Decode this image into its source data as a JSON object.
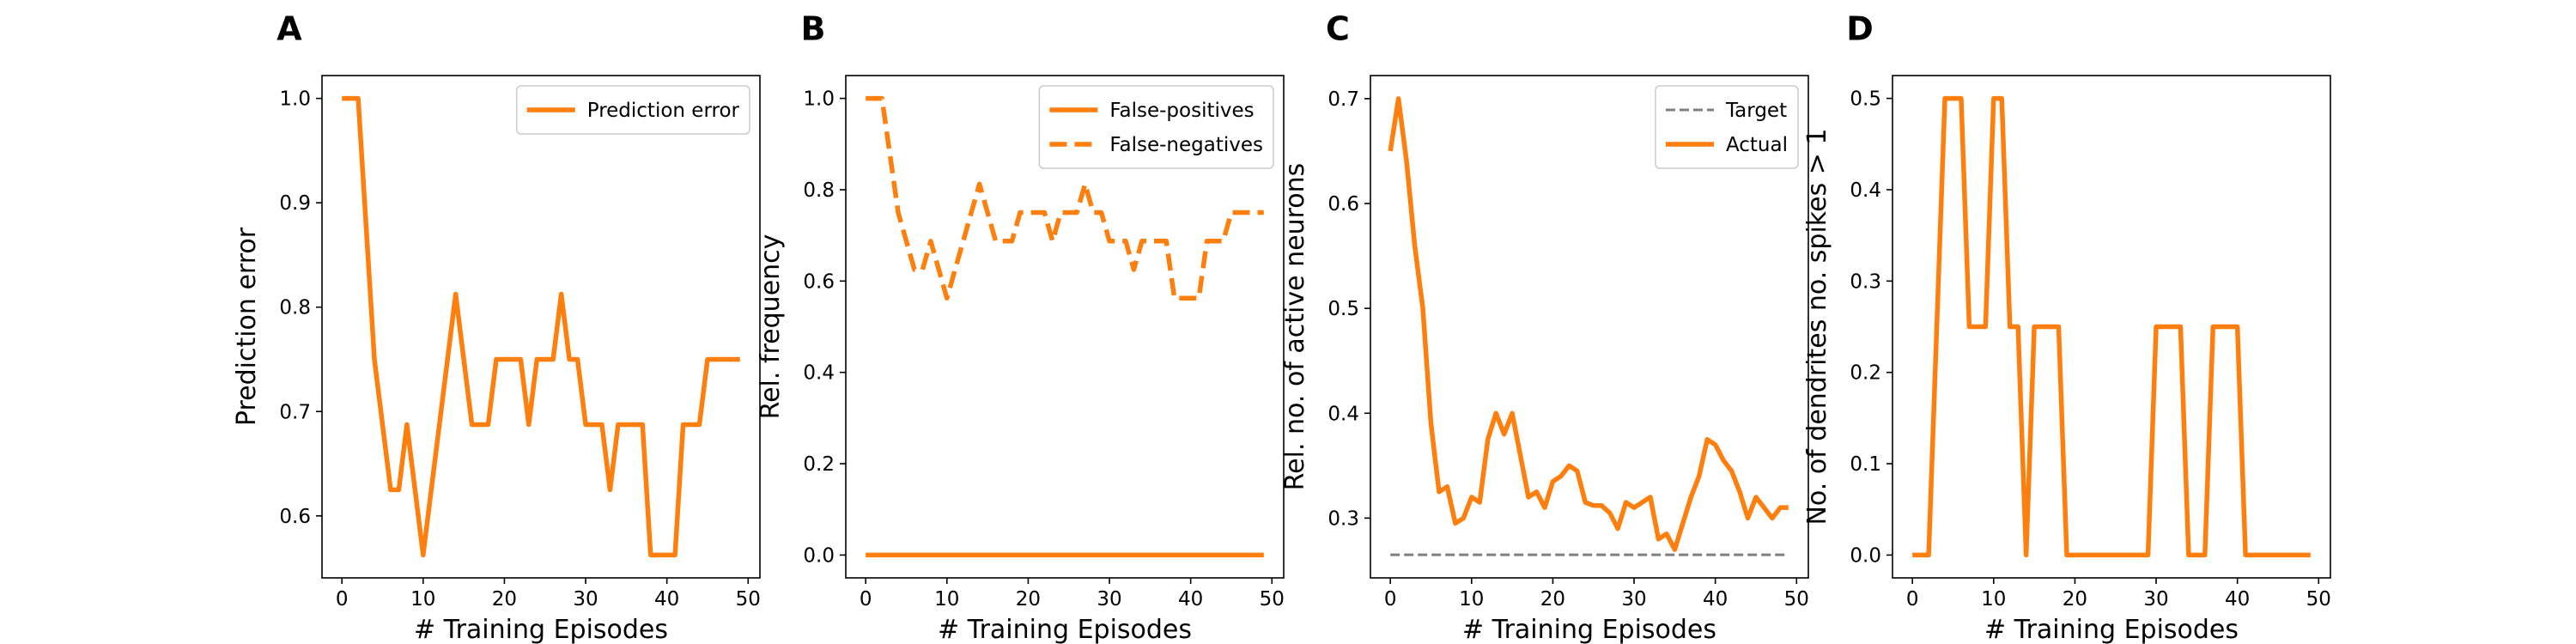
{
  "chart_data": [
    {
      "type": "line",
      "title": "A",
      "xlabel": "# Training Episodes",
      "ylabel": "Prediction error",
      "x": [
        0,
        1,
        2,
        3,
        4,
        5,
        6,
        7,
        8,
        9,
        10,
        11,
        12,
        13,
        14,
        15,
        16,
        17,
        18,
        19,
        20,
        21,
        22,
        23,
        24,
        25,
        26,
        27,
        28,
        29,
        30,
        31,
        32,
        33,
        34,
        35,
        36,
        37,
        38,
        39,
        40,
        41,
        42,
        43,
        44,
        45,
        46,
        47,
        48,
        49
      ],
      "series": [
        {
          "name": "Prediction error",
          "color": "#ff7f0e",
          "linestyle": "solid",
          "values": [
            1,
            1,
            1,
            0.875,
            0.75,
            0.6875,
            0.625,
            0.625,
            0.6875,
            0.625,
            0.5625,
            0.625,
            0.6875,
            0.75,
            0.8125,
            0.75,
            0.6875,
            0.6875,
            0.6875,
            0.75,
            0.75,
            0.75,
            0.75,
            0.6875,
            0.75,
            0.75,
            0.75,
            0.8125,
            0.75,
            0.75,
            0.6875,
            0.6875,
            0.6875,
            0.625,
            0.6875,
            0.6875,
            0.6875,
            0.6875,
            0.5625,
            0.5625,
            0.5625,
            0.5625,
            0.6875,
            0.6875,
            0.6875,
            0.75,
            0.75,
            0.75,
            0.75,
            0.75
          ]
        }
      ],
      "xlim": [
        -2.45,
        51.45
      ],
      "xticks": [
        0,
        10,
        20,
        30,
        40,
        50
      ],
      "ylim": [
        0.5406,
        1.0219
      ],
      "yticks": [
        0.6,
        0.7,
        0.8,
        0.9,
        {
          "value": 1,
          "label": "1.0"
        }
      ],
      "legend": "upper right"
    },
    {
      "type": "line",
      "title": "B",
      "xlabel": "# Training Episodes",
      "ylabel": "Rel. frequency",
      "x": [
        0,
        1,
        2,
        3,
        4,
        5,
        6,
        7,
        8,
        9,
        10,
        11,
        12,
        13,
        14,
        15,
        16,
        17,
        18,
        19,
        20,
        21,
        22,
        23,
        24,
        25,
        26,
        27,
        28,
        29,
        30,
        31,
        32,
        33,
        34,
        35,
        36,
        37,
        38,
        39,
        40,
        41,
        42,
        43,
        44,
        45,
        46,
        47,
        48,
        49
      ],
      "series": [
        {
          "name": "False-positives",
          "color": "#ff7f0e",
          "linestyle": "solid",
          "values": [
            0,
            0,
            0,
            0,
            0,
            0,
            0,
            0,
            0,
            0,
            0,
            0,
            0,
            0,
            0,
            0,
            0,
            0,
            0,
            0,
            0,
            0,
            0,
            0,
            0,
            0,
            0,
            0,
            0,
            0,
            0,
            0,
            0,
            0,
            0,
            0,
            0,
            0,
            0,
            0,
            0,
            0,
            0,
            0,
            0,
            0,
            0,
            0,
            0,
            0
          ]
        },
        {
          "name": "False-negatives",
          "color": "#ff7f0e",
          "linestyle": "dashed",
          "values": [
            1,
            1,
            1,
            0.875,
            0.75,
            0.6875,
            0.625,
            0.625,
            0.6875,
            0.625,
            0.5625,
            0.625,
            0.6875,
            0.75,
            0.8125,
            0.75,
            0.6875,
            0.6875,
            0.6875,
            0.75,
            0.75,
            0.75,
            0.75,
            0.6875,
            0.75,
            0.75,
            0.75,
            0.8125,
            0.75,
            0.75,
            0.6875,
            0.6875,
            0.6875,
            0.625,
            0.6875,
            0.6875,
            0.6875,
            0.6875,
            0.5625,
            0.5625,
            0.5625,
            0.5625,
            0.6875,
            0.6875,
            0.6875,
            0.75,
            0.75,
            0.75,
            0.75,
            0.75
          ]
        }
      ],
      "xlim": [
        -2.45,
        51.45
      ],
      "xticks": [
        0,
        10,
        20,
        30,
        40,
        50
      ],
      "ylim": [
        -0.05,
        1.05
      ],
      "yticks": [
        {
          "value": 0,
          "label": "0.0"
        },
        0.2,
        0.4,
        0.6,
        0.8,
        {
          "value": 1,
          "label": "1.0"
        }
      ],
      "legend": "upper right"
    },
    {
      "type": "line",
      "title": "C",
      "xlabel": "# Training Episodes",
      "ylabel": "Rel. no. of active neurons",
      "x": [
        0,
        1,
        2,
        3,
        4,
        5,
        6,
        7,
        8,
        9,
        10,
        11,
        12,
        13,
        14,
        15,
        16,
        17,
        18,
        19,
        20,
        21,
        22,
        23,
        24,
        25,
        26,
        27,
        28,
        29,
        30,
        31,
        32,
        33,
        34,
        35,
        36,
        37,
        38,
        39,
        40,
        41,
        42,
        43,
        44,
        45,
        46,
        47,
        48,
        49
      ],
      "series": [
        {
          "name": "Target",
          "color": "#7f7f7f",
          "linestyle": "dashed",
          "values": [
            0.265,
            0.265,
            0.265,
            0.265,
            0.265,
            0.265,
            0.265,
            0.265,
            0.265,
            0.265,
            0.265,
            0.265,
            0.265,
            0.265,
            0.265,
            0.265,
            0.265,
            0.265,
            0.265,
            0.265,
            0.265,
            0.265,
            0.265,
            0.265,
            0.265,
            0.265,
            0.265,
            0.265,
            0.265,
            0.265,
            0.265,
            0.265,
            0.265,
            0.265,
            0.265,
            0.265,
            0.265,
            0.265,
            0.265,
            0.265,
            0.265,
            0.265,
            0.265,
            0.265,
            0.265,
            0.265,
            0.265,
            0.265,
            0.265,
            0.265
          ]
        },
        {
          "name": "Actual",
          "color": "#ff7f0e",
          "linestyle": "solid",
          "values": [
            0.65,
            0.7,
            0.64,
            0.56,
            0.5,
            0.39,
            0.325,
            0.33,
            0.295,
            0.3,
            0.32,
            0.315,
            0.375,
            0.4,
            0.38,
            0.4,
            0.36,
            0.32,
            0.325,
            0.31,
            0.335,
            0.34,
            0.35,
            0.345,
            0.315,
            0.312,
            0.312,
            0.305,
            0.29,
            0.315,
            0.31,
            0.315,
            0.32,
            0.28,
            0.285,
            0.27,
            0.295,
            0.32,
            0.34,
            0.375,
            0.37,
            0.355,
            0.345,
            0.325,
            0.3,
            0.32,
            0.31,
            0.3,
            0.31,
            0.31
          ]
        }
      ],
      "xlim": [
        -2.45,
        51.45
      ],
      "xticks": [
        0,
        10,
        20,
        30,
        40,
        50
      ],
      "ylim": [
        0.243,
        0.722
      ],
      "yticks": [
        0.3,
        0.4,
        0.5,
        0.6,
        0.7
      ],
      "legend": "upper right"
    },
    {
      "type": "line",
      "title": "D",
      "xlabel": "# Training Episodes",
      "ylabel": "No. of dendrites no. spikes > 1",
      "x": [
        0,
        1,
        2,
        3,
        4,
        5,
        6,
        7,
        8,
        9,
        10,
        11,
        12,
        13,
        14,
        15,
        16,
        17,
        18,
        19,
        20,
        21,
        22,
        23,
        24,
        25,
        26,
        27,
        28,
        29,
        30,
        31,
        32,
        33,
        34,
        35,
        36,
        37,
        38,
        39,
        40,
        41,
        42,
        43,
        44,
        45,
        46,
        47,
        48,
        49
      ],
      "series": [
        {
          "color": "#ff7f0e",
          "linestyle": "solid",
          "values": [
            0,
            0,
            0,
            0.25,
            0.5,
            0.5,
            0.5,
            0.25,
            0.25,
            0.25,
            0.5,
            0.5,
            0.25,
            0.25,
            0,
            0.25,
            0.25,
            0.25,
            0.25,
            0,
            0,
            0,
            0,
            0,
            0,
            0,
            0,
            0,
            0,
            0,
            0.25,
            0.25,
            0.25,
            0.25,
            0,
            0,
            0,
            0.25,
            0.25,
            0.25,
            0.25,
            0,
            0,
            0,
            0,
            0,
            0,
            0,
            0,
            0
          ]
        }
      ],
      "xlim": [
        -2.45,
        51.45
      ],
      "xticks": [
        0,
        10,
        20,
        30,
        40,
        50
      ],
      "ylim": [
        -0.025,
        0.525
      ],
      "yticks": [
        {
          "value": 0,
          "label": "0.0"
        },
        0.1,
        0.2,
        0.3,
        0.4,
        0.5
      ]
    }
  ]
}
